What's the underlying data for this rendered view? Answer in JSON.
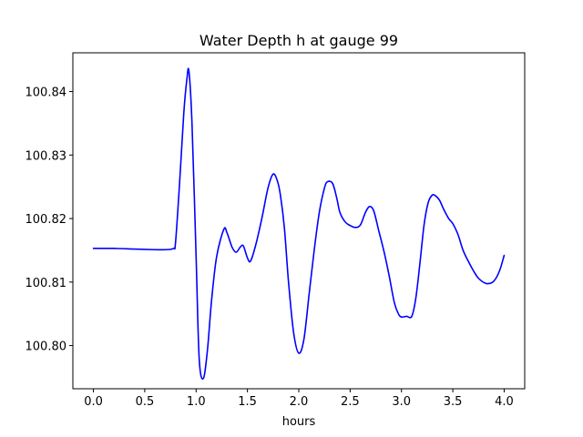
{
  "chart_data": {
    "type": "line",
    "title": "Water Depth h at gauge 99",
    "xlabel": "hours",
    "ylabel": "",
    "xlim": [
      -0.2,
      4.2
    ],
    "ylim": [
      100.7932,
      100.8461
    ],
    "xticks": [
      0.0,
      0.5,
      1.0,
      1.5,
      2.0,
      2.5,
      3.0,
      3.5,
      4.0
    ],
    "xtick_labels": [
      "0.0",
      "0.5",
      "1.0",
      "1.5",
      "2.0",
      "2.5",
      "3.0",
      "3.5",
      "4.0"
    ],
    "yticks": [
      100.8,
      100.81,
      100.82,
      100.83,
      100.84
    ],
    "ytick_labels": [
      "100.80",
      "100.81",
      "100.82",
      "100.83",
      "100.84"
    ],
    "grid": false,
    "series": [
      {
        "color": "#0000ff",
        "x": [
          0.0,
          0.2,
          0.4,
          0.6,
          0.7,
          0.78,
          0.8,
          0.84,
          0.88,
          0.91,
          0.93,
          0.96,
          1.0,
          1.03,
          1.07,
          1.11,
          1.15,
          1.2,
          1.27,
          1.3,
          1.35,
          1.39,
          1.43,
          1.46,
          1.5,
          1.53,
          1.58,
          1.64,
          1.7,
          1.75,
          1.79,
          1.82,
          1.86,
          1.9,
          1.95,
          2.0,
          2.05,
          2.1,
          2.15,
          2.2,
          2.25,
          2.28,
          2.33,
          2.37,
          2.4,
          2.45,
          2.5,
          2.55,
          2.6,
          2.65,
          2.69,
          2.73,
          2.78,
          2.83,
          2.88,
          2.93,
          2.97,
          3.0,
          3.05,
          3.1,
          3.14,
          3.18,
          3.22,
          3.26,
          3.3,
          3.33,
          3.37,
          3.41,
          3.46,
          3.5,
          3.55,
          3.6,
          3.65,
          3.7,
          3.75,
          3.82,
          3.88,
          3.92,
          3.96,
          4.0
        ],
        "y": [
          100.8153,
          100.8153,
          100.8152,
          100.8151,
          100.8151,
          100.8153,
          100.8163,
          100.8258,
          100.8366,
          100.8419,
          100.8432,
          100.835,
          100.814,
          100.798,
          100.7948,
          100.7992,
          100.807,
          100.814,
          100.8183,
          100.8178,
          100.8155,
          100.8147,
          100.8155,
          100.8157,
          100.8138,
          100.8133,
          100.8158,
          100.82,
          100.8248,
          100.827,
          100.826,
          100.8238,
          100.8185,
          100.81,
          100.802,
          100.7988,
          100.801,
          100.808,
          100.815,
          100.821,
          100.8248,
          100.8258,
          100.8255,
          100.8232,
          100.821,
          100.8195,
          100.8189,
          100.8186,
          100.819,
          100.821,
          100.8219,
          100.8212,
          100.818,
          100.8148,
          100.811,
          100.8068,
          100.805,
          100.8045,
          100.8046,
          100.8046,
          100.8075,
          100.813,
          100.819,
          100.8225,
          100.8237,
          100.8236,
          100.8229,
          100.8215,
          100.82,
          100.8192,
          100.8175,
          100.815,
          100.8133,
          100.8118,
          100.8106,
          100.8098,
          100.8099,
          100.8106,
          100.812,
          100.8142
        ]
      }
    ]
  }
}
